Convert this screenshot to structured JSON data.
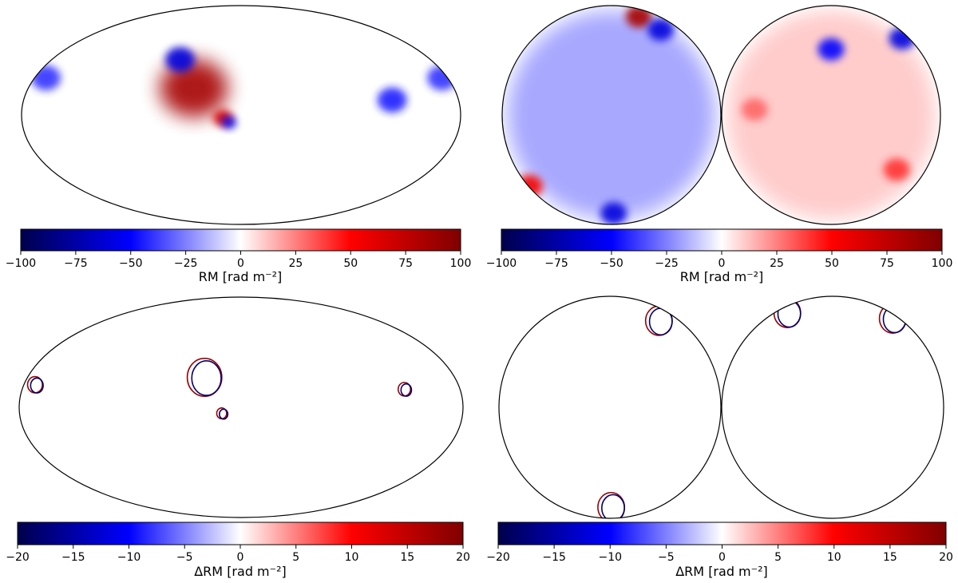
{
  "chart_data": [
    {
      "type": "heatmap",
      "projection": "mollweide",
      "panel": "top-left",
      "colormap": "seismic",
      "colorbar": {
        "range": [
          -100,
          100
        ],
        "ticks": [
          -100,
          -75,
          -50,
          -25,
          0,
          25,
          50,
          75,
          100
        ],
        "label": "RM [rad m⁻²]",
        "placement": "bottom"
      },
      "features": [
        {
          "kind": "positive-patch",
          "lon": 40,
          "lat": 18,
          "magnitude": 85,
          "extent": 28
        },
        {
          "kind": "negative-patch",
          "lon": 58,
          "lat": 38,
          "magnitude": -60,
          "extent": 12
        },
        {
          "kind": "positive-patch",
          "lon": 15,
          "lat": -2,
          "magnitude": 65,
          "extent": 8
        },
        {
          "kind": "negative-patch",
          "lon": 10,
          "lat": -5,
          "magnitude": -55,
          "extent": 6
        },
        {
          "kind": "negative-patch",
          "lon": -125,
          "lat": 10,
          "magnitude": -45,
          "extent": 12
        },
        {
          "kind": "negative-patch",
          "lon": 170,
          "lat": 25,
          "magnitude": -40,
          "extent": 12
        },
        {
          "kind": "negative-patch",
          "lon": -175,
          "lat": 25,
          "magnitude": -40,
          "extent": 12
        }
      ]
    },
    {
      "type": "heatmap",
      "projection": "orthographic-pair",
      "panel": "top-right",
      "colormap": "seismic",
      "colorbar": {
        "range": [
          -100,
          100
        ],
        "ticks": [
          -100,
          -75,
          -50,
          -25,
          0,
          25,
          50,
          75,
          100
        ],
        "label": "RM [rad m⁻²]",
        "placement": "bottom"
      },
      "hemispheres": [
        {
          "overall_tint": -20,
          "features": [
            {
              "kind": "positive-patch",
              "u": 0.25,
              "v": 0.9,
              "magnitude": 85
            },
            {
              "kind": "negative-patch",
              "u": 0.45,
              "v": 0.78,
              "magnitude": -60
            },
            {
              "kind": "negative-patch",
              "u": 0.02,
              "v": -0.9,
              "magnitude": -60
            },
            {
              "kind": "positive-patch",
              "u": -0.75,
              "v": -0.65,
              "magnitude": 55
            }
          ]
        },
        {
          "overall_tint": 12,
          "features": [
            {
              "kind": "negative-patch",
              "u": 0.0,
              "v": 0.6,
              "magnitude": -50
            },
            {
              "kind": "positive-patch",
              "u": 0.6,
              "v": -0.5,
              "magnitude": 40
            },
            {
              "kind": "positive-patch",
              "u": -0.7,
              "v": 0.05,
              "magnitude": 30
            },
            {
              "kind": "negative-patch",
              "u": 0.65,
              "v": 0.7,
              "magnitude": -60
            }
          ]
        }
      ]
    },
    {
      "type": "heatmap",
      "projection": "mollweide",
      "panel": "bottom-left",
      "colormap": "seismic",
      "colorbar": {
        "range": [
          -20,
          20
        ],
        "ticks": [
          -20,
          -15,
          -10,
          -5,
          0,
          5,
          10,
          15,
          20
        ],
        "label": "ΔRM [rad m⁻²]",
        "placement": "bottom"
      },
      "features": [
        {
          "kind": "dipole-ring",
          "lon": 30,
          "lat": 20,
          "magnitude": 15,
          "extent": 14
        },
        {
          "kind": "dipole-ring",
          "lon": 15,
          "lat": -4,
          "magnitude": 15,
          "extent": 4
        },
        {
          "kind": "dipole-ring",
          "lon": -135,
          "lat": 12,
          "magnitude": 12,
          "extent": 5
        },
        {
          "kind": "dipole-ring",
          "lon": 170,
          "lat": 15,
          "magnitude": 8,
          "extent": 6
        }
      ]
    },
    {
      "type": "heatmap",
      "projection": "orthographic-pair",
      "panel": "bottom-right",
      "colormap": "seismic",
      "colorbar": {
        "range": [
          -20,
          20
        ],
        "ticks": [
          -20,
          -15,
          -10,
          -5,
          0,
          5,
          10,
          15,
          20
        ],
        "label": "ΔRM [rad m⁻²]",
        "placement": "bottom"
      },
      "hemispheres": [
        {
          "overall_tint": 0,
          "features": [
            {
              "kind": "dipole-ring",
              "u": 0.45,
              "v": 0.78,
              "magnitude": 12
            },
            {
              "kind": "dipole-ring",
              "u": 0.02,
              "v": -0.9,
              "magnitude": 10
            }
          ]
        },
        {
          "overall_tint": 0,
          "features": [
            {
              "kind": "dipole-ring",
              "u": -0.4,
              "v": 0.85,
              "magnitude": 10
            },
            {
              "kind": "dipole-ring",
              "u": 0.55,
              "v": 0.8,
              "magnitude": 12
            }
          ]
        }
      ]
    }
  ]
}
